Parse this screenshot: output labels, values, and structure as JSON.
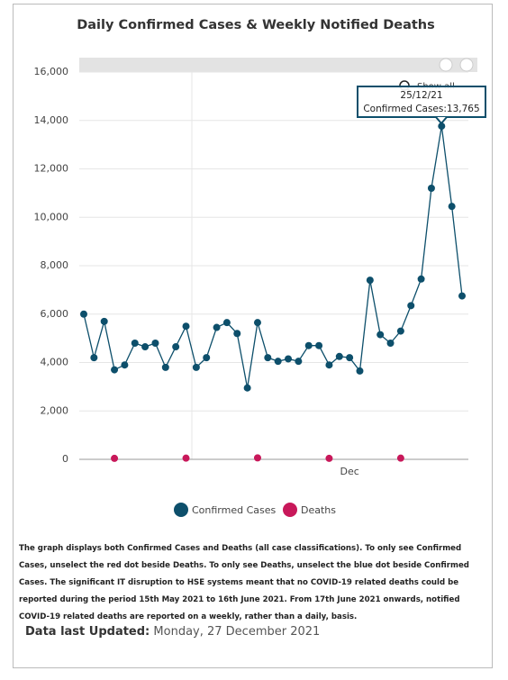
{
  "chart_data": {
    "type": "line",
    "title": "Daily Confirmed Cases & Weekly Notified Deaths",
    "categories": [
      null,
      null,
      null,
      null,
      null,
      null,
      null,
      null,
      null,
      null,
      null,
      null,
      null,
      null,
      null,
      null,
      null,
      null,
      null,
      null,
      null,
      null,
      null,
      null,
      null,
      null,
      "Dec",
      null,
      null,
      null,
      null,
      null,
      null,
      null,
      null,
      null,
      null,
      null
    ],
    "series": [
      {
        "name": "Confirmed Cases",
        "color": "#0d4f6b",
        "values": [
          6000,
          4200,
          5700,
          3700,
          3900,
          4800,
          4650,
          4800,
          3800,
          4650,
          5500,
          3800,
          4200,
          5450,
          5650,
          5200,
          2950,
          5650,
          4200,
          4050,
          4150,
          4050,
          4700,
          4700,
          3900,
          4250,
          4200,
          3650,
          7400,
          5150,
          4800,
          5300,
          6350,
          7450,
          11200,
          13765,
          10450,
          6750
        ]
      },
      {
        "name": "Deaths",
        "color": "#c8185a",
        "values": [
          null,
          null,
          null,
          40,
          null,
          null,
          null,
          null,
          null,
          null,
          50,
          null,
          null,
          null,
          null,
          null,
          null,
          60,
          null,
          null,
          null,
          null,
          null,
          null,
          40,
          null,
          null,
          null,
          null,
          null,
          null,
          50,
          null,
          null,
          null,
          null,
          null,
          null
        ]
      }
    ],
    "ylim": [
      0,
      16000
    ],
    "yticks": [
      0,
      {
        "value": 2000,
        "label": "2,000"
      },
      {
        "value": 4000,
        "label": "4,000"
      },
      {
        "value": 6000,
        "label": "6,000"
      },
      {
        "value": 8000,
        "label": "8,000"
      },
      {
        "value": 10000,
        "label": "10,000"
      },
      {
        "value": 12000,
        "label": "12,000"
      },
      {
        "value": 14000,
        "label": "14,000"
      },
      {
        "value": 16000,
        "label": "16,000"
      }
    ],
    "grid": true,
    "tooltip": {
      "date": "25/12/21",
      "label": "Confirmed Cases:13,765"
    },
    "zoom_label": "Show all"
  },
  "note": "The graph displays both Confirmed Cases and Deaths (all case classifications). To only see Confirmed Cases, unselect the red dot beside Deaths. To only see Deaths, unselect the blue dot beside Confirmed Cases. The significant IT disruption to HSE systems meant that no COVID-19 related deaths could be reported during the period 15th May 2021 to 16th June 2021. From 17th June 2021 onwards, notified COVID-19 related deaths are reported on a weekly, rather than a daily, basis.",
  "updated": {
    "label": "Data last Updated:",
    "value": "Monday, 27 December 2021"
  }
}
